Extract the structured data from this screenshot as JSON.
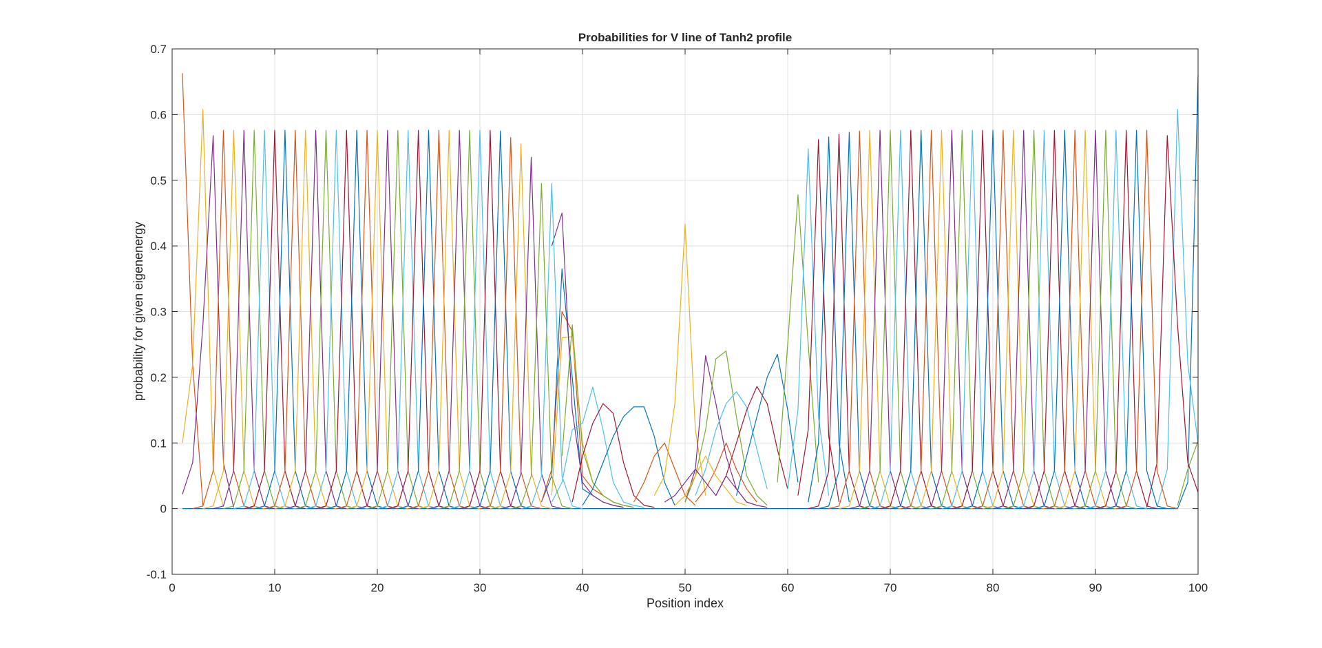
{
  "chart_data": {
    "type": "line",
    "title": "Probabilities for V line of Tanh2 profile",
    "xlabel": "Position index",
    "ylabel": "probability for given eigenenergy",
    "xlim": [
      0,
      100
    ],
    "ylim": [
      -0.1,
      0.7
    ],
    "xticks": [
      0,
      10,
      20,
      30,
      40,
      50,
      60,
      70,
      80,
      90,
      100
    ],
    "yticks": [
      -0.1,
      0,
      0.1,
      0.2,
      0.3,
      0.4,
      0.5,
      0.6,
      0.7
    ],
    "xtick_labels": [
      "0",
      "10",
      "20",
      "30",
      "40",
      "50",
      "60",
      "70",
      "80",
      "90",
      "100"
    ],
    "ytick_labels": [
      "-0.1",
      "0",
      "0.1",
      "0.2",
      "0.3",
      "0.4",
      "0.5",
      "0.6",
      "0.7"
    ],
    "grid": true,
    "legend": "none",
    "colors": [
      "#0072BD",
      "#D95319",
      "#EDB120",
      "#7E2F8E",
      "#77AC30",
      "#4DBEEE",
      "#A2142F"
    ],
    "series": [
      {
        "x": [
          1,
          2,
          3,
          4,
          5,
          6,
          7,
          8,
          9,
          10,
          11,
          12,
          13,
          14,
          15,
          16,
          17,
          18,
          19,
          20,
          21,
          22,
          23,
          24,
          25,
          26,
          27,
          28,
          29,
          30,
          31,
          32,
          33,
          34,
          35,
          36,
          37,
          38,
          39,
          40,
          41,
          42,
          43,
          44,
          45,
          46,
          47,
          48,
          49,
          50,
          51,
          52,
          53,
          54,
          55,
          56,
          57,
          58,
          59,
          60,
          61,
          62,
          63,
          64,
          65,
          66,
          67,
          68,
          69,
          70,
          71,
          72,
          73,
          74,
          75,
          76,
          77,
          78,
          79,
          80,
          81,
          82,
          83,
          84,
          85,
          86,
          87,
          88,
          89,
          90,
          91,
          92,
          93,
          94,
          95,
          96,
          97,
          98,
          99,
          100
        ],
        "y": [
          0,
          0,
          0,
          0,
          0,
          0,
          0,
          0,
          0,
          0,
          0,
          0,
          0,
          0,
          0,
          0,
          0,
          0,
          0,
          0,
          0,
          0,
          0,
          0,
          0,
          0,
          0,
          0,
          0,
          0,
          0,
          0,
          0,
          0,
          0,
          0,
          0,
          0,
          0,
          0,
          0,
          0,
          0,
          0,
          0,
          0,
          0,
          0,
          0,
          0,
          0,
          0,
          0,
          0,
          0,
          0,
          0,
          0,
          0,
          0,
          0,
          0,
          0,
          0,
          0,
          0,
          0,
          0,
          0,
          0,
          0,
          0,
          0,
          0,
          0,
          0,
          0,
          0,
          0,
          0,
          0,
          0,
          0,
          0,
          0,
          0,
          0,
          0,
          0,
          0,
          0,
          0,
          0,
          0,
          0,
          0,
          0,
          0,
          0.04,
          0.66
        ]
      },
      {
        "x": [
          1,
          2,
          3
        ],
        "y": [
          0.663,
          0.22,
          0.005
        ]
      },
      {
        "x": [
          1,
          2,
          3,
          4,
          5
        ],
        "y": [
          0.1,
          0.22,
          0.608,
          0.06,
          0.003
        ]
      },
      {
        "x": [
          1,
          2,
          3,
          4,
          5,
          6
        ],
        "y": [
          0.022,
          0.07,
          0.28,
          0.568,
          0.07,
          0.002
        ]
      },
      {
        "x": [
          98,
          99,
          100
        ],
        "y": [
          0.005,
          0.06,
          0.103
        ]
      },
      {
        "x": [
          96,
          97,
          98,
          99,
          100
        ],
        "y": [
          0.002,
          0.06,
          0.608,
          0.22,
          0.1
        ]
      },
      {
        "x": [
          95,
          96,
          97,
          98,
          99,
          100
        ],
        "y": [
          0.002,
          0.07,
          0.568,
          0.28,
          0.07,
          0.025
        ]
      },
      {
        "x": [
          36,
          37,
          38,
          39,
          40,
          41,
          42,
          43,
          44
        ],
        "y": [
          0.01,
          0.05,
          0.365,
          0.2,
          0.03,
          0.02,
          0.01,
          0.005,
          0.002
        ]
      },
      {
        "x": [
          36,
          37,
          38,
          39,
          40,
          41,
          42,
          43,
          44,
          45
        ],
        "y": [
          0.01,
          0.06,
          0.3,
          0.27,
          0.05,
          0.03,
          0.02,
          0.01,
          0.005,
          0.002
        ]
      },
      {
        "x": [
          37,
          38,
          39,
          40,
          41,
          42,
          43,
          44
        ],
        "y": [
          0.02,
          0.26,
          0.262,
          0.1,
          0.04,
          0.02,
          0.01,
          0.005
        ]
      },
      {
        "x": [
          37,
          38,
          39,
          40,
          41,
          42,
          43,
          44
        ],
        "y": [
          0.4,
          0.45,
          0.15,
          0.04,
          0.02,
          0.01,
          0.005,
          0.002
        ]
      },
      {
        "x": [
          38,
          39,
          40,
          41,
          42,
          43,
          44,
          45
        ],
        "y": [
          0.08,
          0.28,
          0.09,
          0.04,
          0.02,
          0.01,
          0.005,
          0.002
        ]
      },
      {
        "x": [
          37,
          38,
          39,
          40,
          41,
          42,
          43,
          44,
          45,
          46
        ],
        "y": [
          0.01,
          0.04,
          0.12,
          0.13,
          0.185,
          0.12,
          0.04,
          0.01,
          0.005,
          0.002
        ]
      },
      {
        "x": [
          39,
          40,
          41,
          42,
          43,
          44,
          45,
          46,
          47
        ],
        "y": [
          0.01,
          0.08,
          0.13,
          0.16,
          0.145,
          0.07,
          0.02,
          0.005,
          0.002
        ]
      },
      {
        "x": [
          40,
          41,
          42,
          43,
          44,
          45,
          46,
          47,
          48,
          49
        ],
        "y": [
          0.005,
          0.03,
          0.07,
          0.11,
          0.14,
          0.155,
          0.155,
          0.11,
          0.04,
          0.005
        ]
      },
      {
        "x": [
          45,
          46,
          47,
          48,
          49,
          50,
          51
        ],
        "y": [
          0.01,
          0.04,
          0.08,
          0.1,
          0.06,
          0.02,
          0.005
        ]
      },
      {
        "x": [
          47,
          48,
          49,
          50,
          51,
          52
        ],
        "y": [
          0.02,
          0.05,
          0.16,
          0.433,
          0.12,
          0.02
        ]
      },
      {
        "x": [
          50,
          51,
          52,
          53,
          54,
          55,
          56,
          57,
          58
        ],
        "y": [
          0.01,
          0.06,
          0.233,
          0.16,
          0.08,
          0.03,
          0.01,
          0.005,
          0.002
        ]
      },
      {
        "x": [
          50,
          51,
          52,
          53,
          54,
          55,
          56,
          57,
          58
        ],
        "y": [
          0.01,
          0.05,
          0.12,
          0.228,
          0.24,
          0.14,
          0.05,
          0.02,
          0.005
        ]
      },
      {
        "x": [
          51,
          52,
          53,
          54,
          55,
          56,
          57,
          58
        ],
        "y": [
          0.02,
          0.06,
          0.12,
          0.16,
          0.178,
          0.155,
          0.09,
          0.03
        ]
      },
      {
        "x": [
          53,
          54,
          55,
          56,
          57,
          58,
          59,
          60
        ],
        "y": [
          0.02,
          0.05,
          0.1,
          0.15,
          0.186,
          0.16,
          0.09,
          0.03
        ]
      },
      {
        "x": [
          55,
          56,
          57,
          58,
          59,
          60,
          61
        ],
        "y": [
          0.02,
          0.08,
          0.14,
          0.2,
          0.235,
          0.15,
          0.04
        ]
      },
      {
        "x": [
          51,
          52,
          53,
          54,
          55,
          56,
          57
        ],
        "y": [
          0.01,
          0.03,
          0.06,
          0.1,
          0.06,
          0.03,
          0.01
        ]
      },
      {
        "x": [
          49,
          50,
          51,
          52,
          53,
          54,
          55,
          56
        ],
        "y": [
          0.005,
          0.02,
          0.05,
          0.08,
          0.05,
          0.03,
          0.01,
          0.005
        ]
      },
      {
        "x": [
          48,
          49,
          50,
          51,
          52,
          53,
          54,
          55,
          56,
          57
        ],
        "y": [
          0.01,
          0.02,
          0.04,
          0.06,
          0.04,
          0.02,
          0.05,
          0.03,
          0.01,
          0.005
        ]
      },
      {
        "x": [
          59,
          60,
          61,
          62,
          63
        ],
        "y": [
          0.04,
          0.25,
          0.478,
          0.25,
          0.04
        ]
      },
      {
        "x": [
          60,
          61,
          62,
          63,
          64
        ],
        "y": [
          0.03,
          0.15,
          0.548,
          0.14,
          0.02
        ]
      },
      {
        "x": [
          61,
          62,
          63,
          64,
          65
        ],
        "y": [
          0.02,
          0.12,
          0.562,
          0.11,
          0.01
        ]
      },
      {
        "x": [
          62,
          63,
          64,
          65,
          66
        ],
        "y": [
          0.01,
          0.1,
          0.566,
          0.1,
          0.01
        ]
      }
    ],
    "comb_series": {
      "x_step": 1,
      "x_start": 5,
      "x_end": 35,
      "peaks": [
        0.576,
        0.576,
        0.576,
        0.576,
        0.576,
        0.576,
        0.576,
        0.576,
        0.576,
        0.576,
        0.576,
        0.576,
        0.576,
        0.576,
        0.576,
        0.576,
        0.576,
        0.576,
        0.576,
        0.576,
        0.576,
        0.576,
        0.576,
        0.576,
        0.576,
        0.576,
        0.576,
        0.575,
        0.565,
        0.555,
        0.535
      ],
      "peaks_right_x_start": 65,
      "peaks_right_x_end": 95,
      "peaks_right": [
        0.57,
        0.573,
        0.575,
        0.576,
        0.576,
        0.576,
        0.576,
        0.576,
        0.576,
        0.576,
        0.576,
        0.576,
        0.576,
        0.576,
        0.576,
        0.576,
        0.576,
        0.576,
        0.576,
        0.576,
        0.576,
        0.576,
        0.576,
        0.576,
        0.576,
        0.576,
        0.576,
        0.576,
        0.576,
        0.576,
        0.576
      ],
      "extra": [
        {
          "x": 36,
          "peak": 0.495
        },
        {
          "x": 37,
          "peak": 0.495
        }
      ],
      "neighbor_ratio": 0.1
    }
  }
}
